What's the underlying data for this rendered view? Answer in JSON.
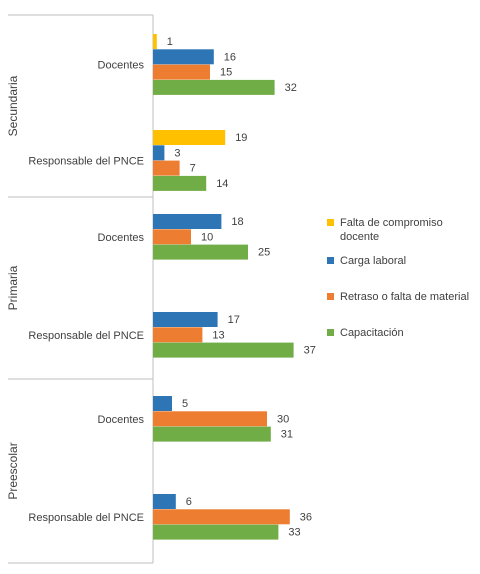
{
  "chart_data": {
    "type": "bar",
    "orientation": "horizontal",
    "groups": [
      {
        "name": "Secundaria",
        "categories": [
          {
            "name": "Docentes",
            "values": {
              "Falta de compromiso docente": 1,
              "Carga laboral": 16,
              "Retraso o falta de material": 15,
              "Capacitación": 32
            }
          },
          {
            "name": "Responsable del PNCE",
            "values": {
              "Falta de compromiso docente": 19,
              "Carga laboral": 3,
              "Retraso o falta de material": 7,
              "Capacitación": 14
            }
          }
        ]
      },
      {
        "name": "Primaria",
        "categories": [
          {
            "name": "Docentes",
            "values": {
              "Carga laboral": 18,
              "Retraso o falta de material": 10,
              "Capacitación": 25
            }
          },
          {
            "name": "Responsable del PNCE",
            "values": {
              "Carga laboral": 17,
              "Retraso o falta de material": 13,
              "Capacitación": 37
            }
          }
        ]
      },
      {
        "name": "Preescolar",
        "categories": [
          {
            "name": "Docentes",
            "values": {
              "Carga laboral": 5,
              "Retraso o falta de material": 30,
              "Capacitación": 31
            }
          },
          {
            "name": "Responsable del PNCE",
            "values": {
              "Carga laboral": 6,
              "Retraso o falta de material": 36,
              "Capacitación": 33
            }
          }
        ]
      }
    ],
    "series": [
      {
        "name": "Falta de compromiso docente",
        "color": "#FFC000"
      },
      {
        "name": "Carga laboral",
        "color": "#2E75B6"
      },
      {
        "name": "Retraso o falta de material",
        "color": "#ED7D31"
      },
      {
        "name": "Capacitación",
        "color": "#70AD47"
      }
    ],
    "legend_position": "right",
    "data_labels": true,
    "grid": false,
    "xlim": [
      0,
      40
    ]
  }
}
